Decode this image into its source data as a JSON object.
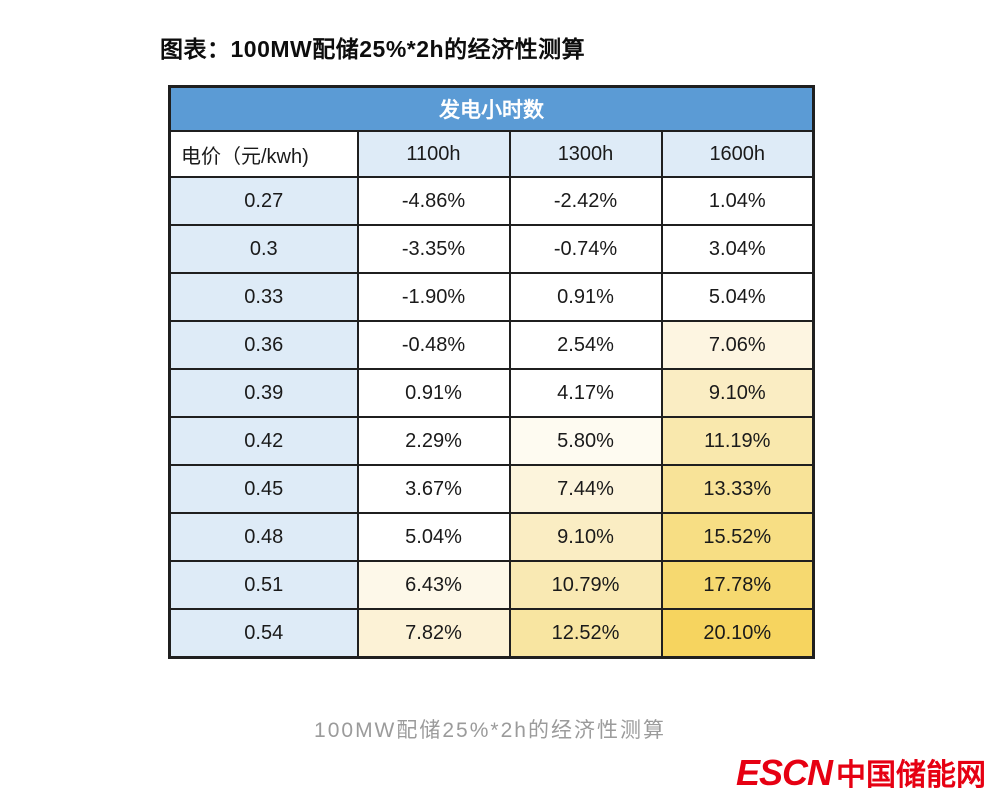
{
  "title": "图表：100MW配储25%*2h的经济性测算",
  "caption": "100MW配储25%*2h的经济性测算",
  "logo": {
    "latin": "ESCN",
    "chinese": "中国储能网",
    "color": "#E60012"
  },
  "table": {
    "span_header": "发电小时数",
    "col_headers": [
      "电价（元/kwh)",
      "1100h",
      "1300h",
      "1600h"
    ],
    "colors": {
      "span_header_bg": "#5B9BD5",
      "span_header_text": "#FFFFFF",
      "subheader_bg": "#DEEBF7",
      "price_col_bg": "#DEEBF7",
      "border": "#1f1f1f"
    },
    "rows": [
      {
        "price": "0.27",
        "cells": [
          {
            "text": "-4.86%",
            "bg": "#FFFFFF"
          },
          {
            "text": "-2.42%",
            "bg": "#FFFFFF"
          },
          {
            "text": "1.04%",
            "bg": "#FFFFFF"
          }
        ]
      },
      {
        "price": "0.3",
        "cells": [
          {
            "text": "-3.35%",
            "bg": "#FFFFFF"
          },
          {
            "text": "-0.74%",
            "bg": "#FFFFFF"
          },
          {
            "text": "3.04%",
            "bg": "#FFFFFF"
          }
        ]
      },
      {
        "price": "0.33",
        "cells": [
          {
            "text": "-1.90%",
            "bg": "#FFFFFF"
          },
          {
            "text": "0.91%",
            "bg": "#FFFFFF"
          },
          {
            "text": "5.04%",
            "bg": "#FFFFFF"
          }
        ]
      },
      {
        "price": "0.36",
        "cells": [
          {
            "text": "-0.48%",
            "bg": "#FFFFFF"
          },
          {
            "text": "2.54%",
            "bg": "#FFFFFF"
          },
          {
            "text": "7.06%",
            "bg": "#FDF5E1"
          }
        ]
      },
      {
        "price": "0.39",
        "cells": [
          {
            "text": "0.91%",
            "bg": "#FFFFFF"
          },
          {
            "text": "4.17%",
            "bg": "#FFFFFF"
          },
          {
            "text": "9.10%",
            "bg": "#FAEDC3"
          }
        ]
      },
      {
        "price": "0.42",
        "cells": [
          {
            "text": "2.29%",
            "bg": "#FFFFFF"
          },
          {
            "text": "5.80%",
            "bg": "#FEFBF1"
          },
          {
            "text": "11.19%",
            "bg": "#F9E8AD"
          }
        ]
      },
      {
        "price": "0.45",
        "cells": [
          {
            "text": "3.67%",
            "bg": "#FFFFFF"
          },
          {
            "text": "7.44%",
            "bg": "#FCF4DC"
          },
          {
            "text": "13.33%",
            "bg": "#F8E398"
          }
        ]
      },
      {
        "price": "0.48",
        "cells": [
          {
            "text": "5.04%",
            "bg": "#FFFFFF"
          },
          {
            "text": "9.10%",
            "bg": "#FAEDC3"
          },
          {
            "text": "15.52%",
            "bg": "#F7DE84"
          }
        ]
      },
      {
        "price": "0.51",
        "cells": [
          {
            "text": "6.43%",
            "bg": "#FDF8E9"
          },
          {
            "text": "10.79%",
            "bg": "#F9E9B3"
          },
          {
            "text": "17.78%",
            "bg": "#F6D970"
          }
        ]
      },
      {
        "price": "0.54",
        "cells": [
          {
            "text": "7.82%",
            "bg": "#FCF2D6"
          },
          {
            "text": "12.52%",
            "bg": "#F8E5A1"
          },
          {
            "text": "20.10%",
            "bg": "#F6D45F"
          }
        ]
      }
    ]
  },
  "chart_data": {
    "type": "table",
    "title": "图表：100MW配储25%*2h的经济性测算",
    "group_header": "发电小时数",
    "columns": [
      "电价（元/kwh)",
      "1100h",
      "1300h",
      "1600h"
    ],
    "rows": [
      [
        0.27,
        -4.86,
        -2.42,
        1.04
      ],
      [
        0.3,
        -3.35,
        -0.74,
        3.04
      ],
      [
        0.33,
        -1.9,
        0.91,
        5.04
      ],
      [
        0.36,
        -0.48,
        2.54,
        7.06
      ],
      [
        0.39,
        0.91,
        4.17,
        9.1
      ],
      [
        0.42,
        2.29,
        5.8,
        11.19
      ],
      [
        0.45,
        3.67,
        7.44,
        13.33
      ],
      [
        0.48,
        5.04,
        9.1,
        15.52
      ],
      [
        0.51,
        6.43,
        10.79,
        17.78
      ],
      [
        0.54,
        7.82,
        12.52,
        20.1
      ]
    ],
    "value_unit": "%",
    "note": "values are IRR percentages shaded white→gold as value increases"
  }
}
